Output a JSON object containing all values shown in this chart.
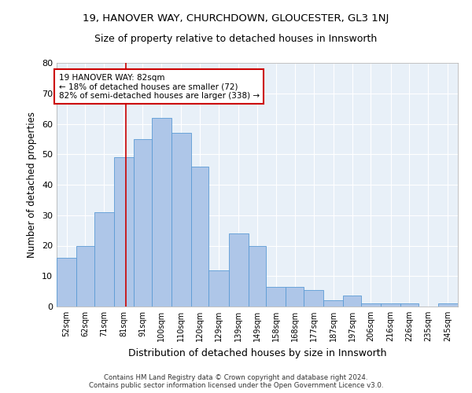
{
  "title": "19, HANOVER WAY, CHURCHDOWN, GLOUCESTER, GL3 1NJ",
  "subtitle": "Size of property relative to detached houses in Innsworth",
  "xlabel": "Distribution of detached houses by size in Innsworth",
  "ylabel": "Number of detached properties",
  "categories": [
    "52sqm",
    "62sqm",
    "71sqm",
    "81sqm",
    "91sqm",
    "100sqm",
    "110sqm",
    "120sqm",
    "129sqm",
    "139sqm",
    "149sqm",
    "158sqm",
    "168sqm",
    "177sqm",
    "187sqm",
    "197sqm",
    "206sqm",
    "216sqm",
    "226sqm",
    "235sqm",
    "245sqm"
  ],
  "values": [
    16,
    20,
    31,
    49,
    55,
    62,
    57,
    46,
    12,
    24,
    20,
    6.5,
    6.5,
    5.5,
    2,
    3.5,
    1,
    1,
    1,
    0,
    1
  ],
  "bar_color": "#aec6e8",
  "bar_edge_color": "#5b9bd5",
  "bin_edges": [
    47,
    57,
    66,
    76,
    86,
    95,
    105,
    115,
    124,
    134,
    144,
    153,
    163,
    172,
    182,
    192,
    201,
    211,
    221,
    230,
    240,
    250
  ],
  "annotation_text": "19 HANOVER WAY: 82sqm\n← 18% of detached houses are smaller (72)\n82% of semi-detached houses are larger (338) →",
  "annotation_box_color": "#ffffff",
  "annotation_box_edge_color": "#cc0000",
  "ylim": [
    0,
    80
  ],
  "yticks": [
    0,
    10,
    20,
    30,
    40,
    50,
    60,
    70,
    80
  ],
  "background_color": "#e8f0f8",
  "grid_color": "#ffffff",
  "footer_line1": "Contains HM Land Registry data © Crown copyright and database right 2024.",
  "footer_line2": "Contains public sector information licensed under the Open Government Licence v3.0.",
  "title_fontsize": 9.5,
  "subtitle_fontsize": 9,
  "xlabel_fontsize": 9,
  "ylabel_fontsize": 8.5
}
